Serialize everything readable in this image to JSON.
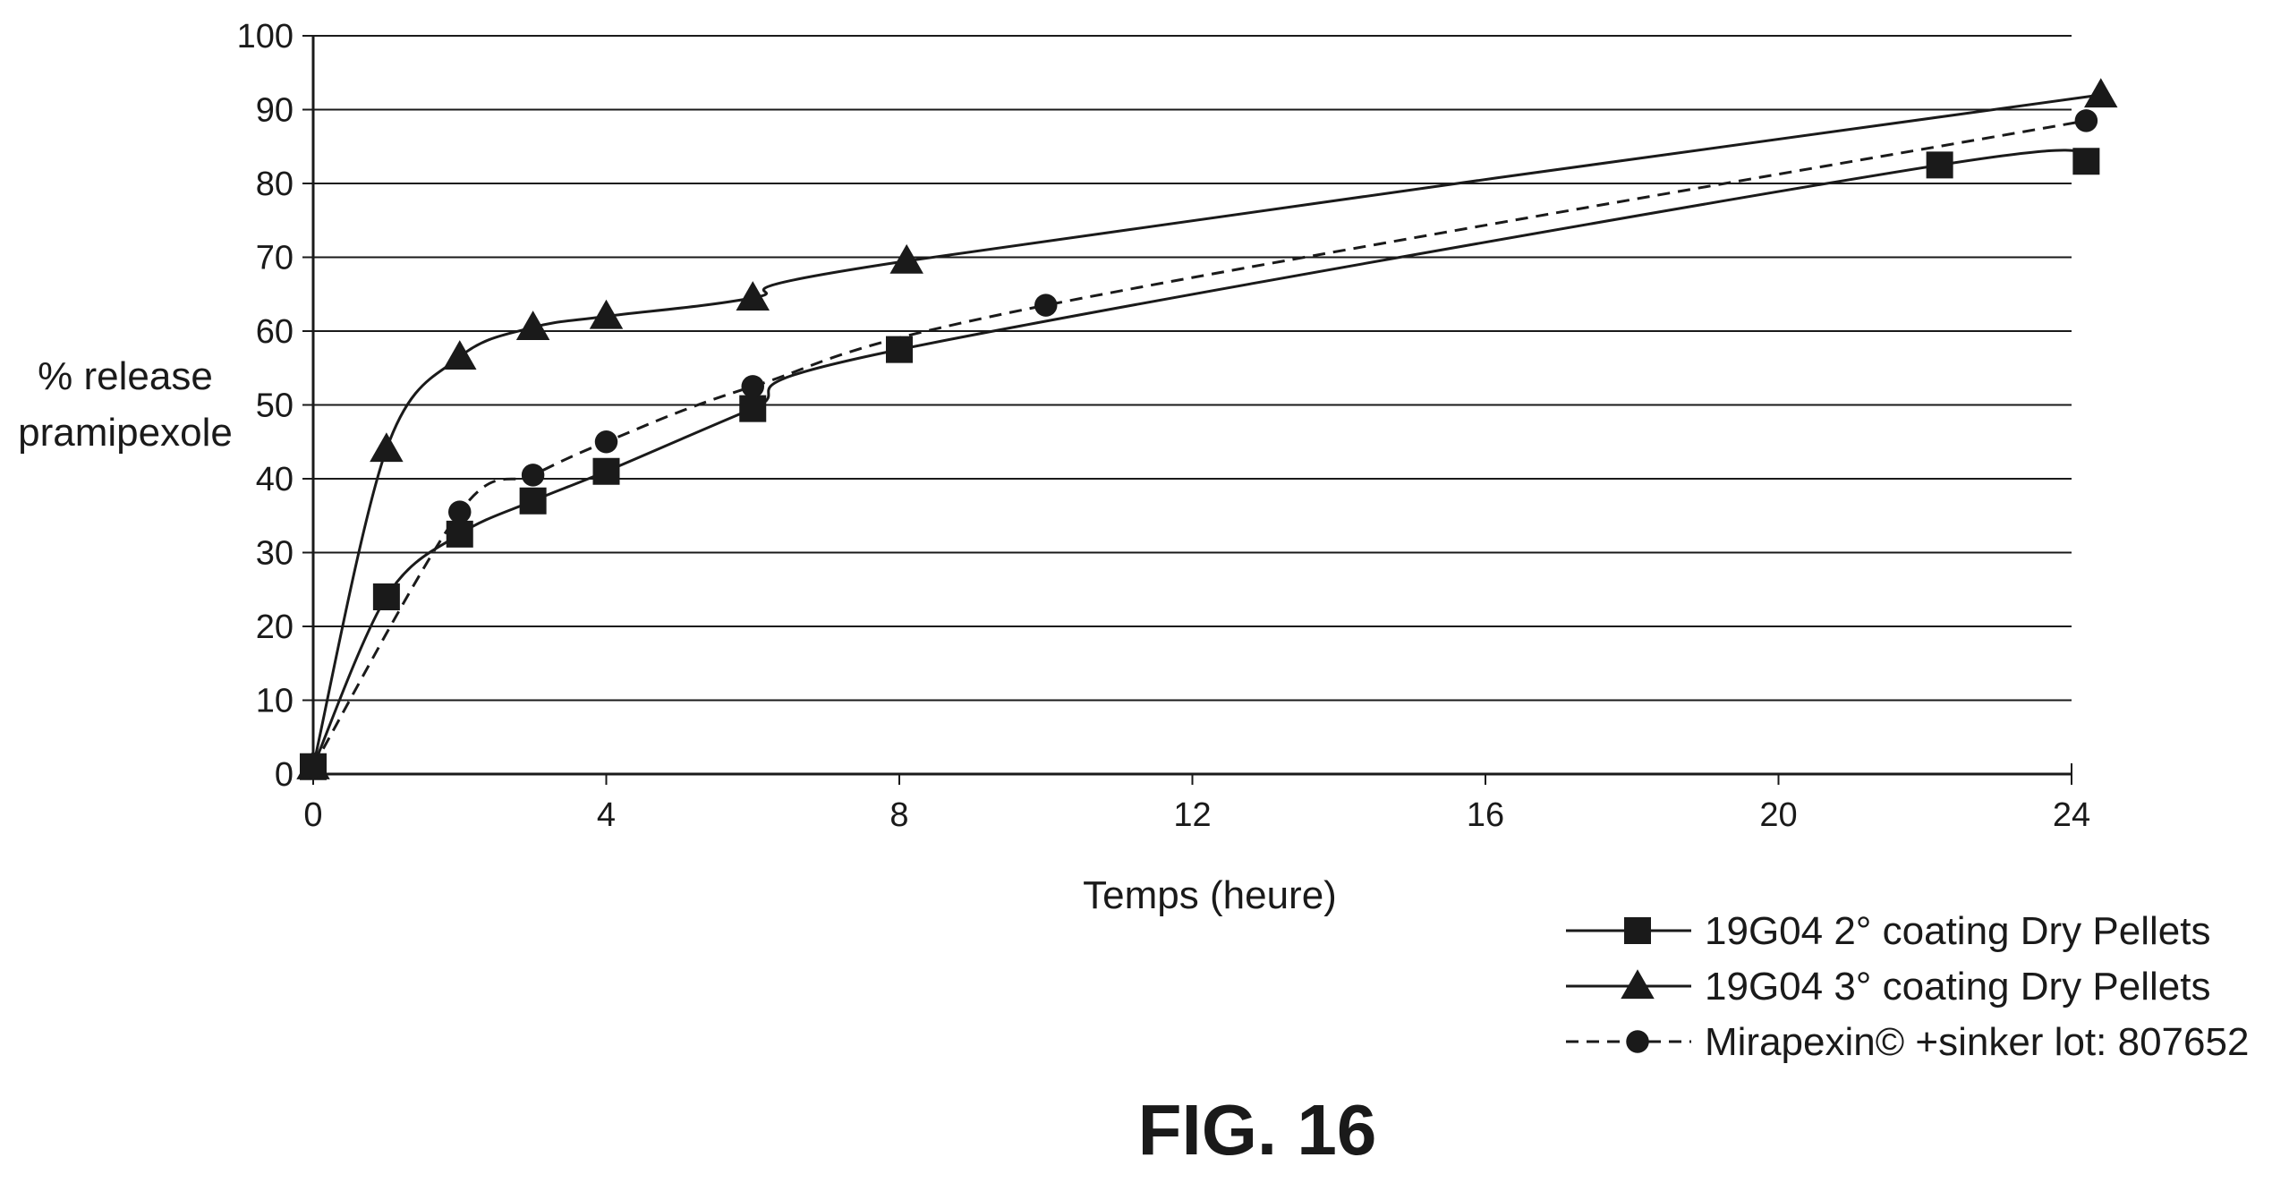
{
  "chart_data": {
    "type": "line",
    "xlabel": "Temps (heure)",
    "ylabel_lines": [
      "% release",
      "pramipexole"
    ],
    "xlim": [
      0,
      24
    ],
    "ylim": [
      0,
      100
    ],
    "x_ticks": [
      0,
      4,
      8,
      12,
      16,
      20,
      24
    ],
    "y_ticks": [
      0,
      10,
      20,
      30,
      40,
      50,
      60,
      70,
      80,
      90,
      100
    ],
    "grid": "horizontal",
    "legend_position": "bottom-right",
    "series": [
      {
        "name": "19G04 2° coating Dry Pellets",
        "marker": "square",
        "line_style": "solid",
        "color": "#1a1a1a",
        "x": [
          0,
          1,
          2,
          3,
          4,
          6,
          8,
          22.2,
          24.2
        ],
        "y": [
          1,
          24,
          32.5,
          37,
          41,
          49.5,
          57.5,
          82.5,
          83
        ]
      },
      {
        "name": "19G04 3° coating Dry Pellets",
        "marker": "triangle",
        "line_style": "solid",
        "color": "#1a1a1a",
        "x": [
          0,
          1,
          2,
          3,
          4,
          6,
          8.1,
          24.4
        ],
        "y": [
          1,
          44,
          56.5,
          60.5,
          62,
          64.5,
          69.5,
          92
        ]
      },
      {
        "name": "Mirapexin© +sinker lot: 807652",
        "marker": "circle",
        "line_style": "dashed",
        "color": "#1a1a1a",
        "x": [
          0,
          2,
          3,
          4,
          6,
          10,
          24.2
        ],
        "y": [
          1,
          35.5,
          40.5,
          45,
          52.5,
          63.5,
          88.5
        ]
      }
    ]
  },
  "caption": "FIG. 16"
}
